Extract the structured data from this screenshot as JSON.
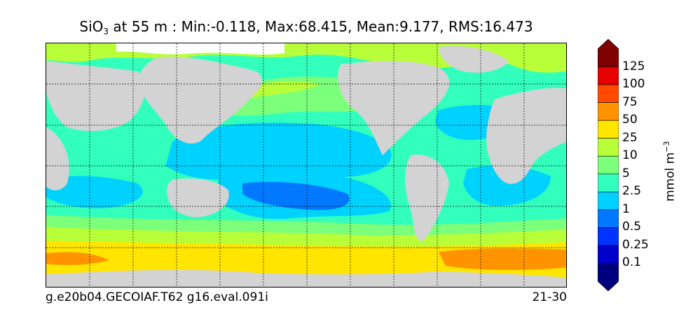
{
  "title": {
    "variable": "SiO",
    "subscript": "3",
    "rest": " at 55 m : Min:-0.118, Max:68.415, Mean:9.177, RMS:16.473"
  },
  "caption": {
    "left": "g.e20b04.GECOIAF.T62 g16.eval.091i",
    "right": "21-30"
  },
  "colorbar": {
    "units": "mmol m",
    "units_exponent": "−3",
    "levels": [
      "0.1",
      "0.25",
      "0.5",
      "1",
      "2.5",
      "5",
      "10",
      "25",
      "50",
      "75",
      "100",
      "125"
    ],
    "colors": [
      "#00007f",
      "#0000cd",
      "#0033ff",
      "#0078ff",
      "#00d2ff",
      "#33ffbd",
      "#7cff7a",
      "#b8ff3a",
      "#ffe500",
      "#ff9400",
      "#ff4a00",
      "#e60000",
      "#7f0000"
    ]
  },
  "map": {
    "land_color": "#d3d3d3",
    "ice_color": "#ffffff"
  }
}
